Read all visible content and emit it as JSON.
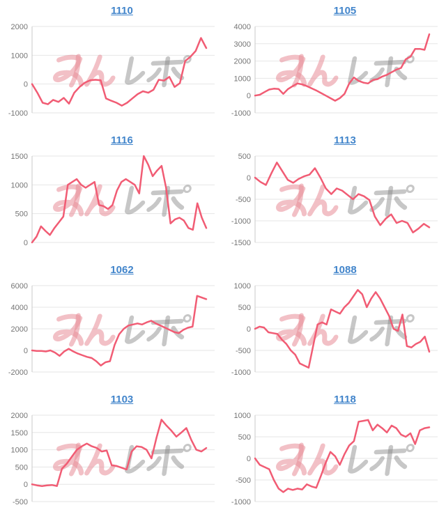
{
  "page": {
    "background": "#ffffff"
  },
  "style": {
    "line_color": "#f15c74",
    "grid_color": "#e6e6e6",
    "axis_line_color": "#c9c9c9",
    "tick_label_color": "#757575",
    "link_color": "#4285cb",
    "watermark_pink": "rgba(232,140,152,0.55)",
    "watermark_grey": "rgba(130,130,130,0.45)"
  },
  "watermark": {
    "text": "みんレポ",
    "pink_part": "みん",
    "grey_part": "レポ"
  },
  "chart_data": [
    {
      "type": "line",
      "title": "1110",
      "xlabel": "",
      "ylabel": "",
      "ymin": -1000,
      "ymax": 2000,
      "ticks": [
        2000,
        1000,
        0,
        -1000
      ],
      "legend": "none",
      "grid": "horizontal",
      "values": [
        0,
        -300,
        -650,
        -700,
        -550,
        -620,
        -480,
        -680,
        -300,
        -100,
        50,
        130,
        150,
        130,
        -500,
        -580,
        -650,
        -750,
        -650,
        -500,
        -350,
        -250,
        -300,
        -200,
        150,
        120,
        250,
        -100,
        30,
        800,
        950,
        1150,
        1600,
        1250
      ]
    },
    {
      "type": "line",
      "title": "1105",
      "xlabel": "",
      "ylabel": "",
      "ymin": -1000,
      "ymax": 4000,
      "ticks": [
        4000,
        3000,
        2000,
        1000,
        0,
        -1000
      ],
      "legend": "none",
      "grid": "horizontal",
      "values": [
        0,
        50,
        200,
        350,
        400,
        380,
        100,
        380,
        550,
        700,
        650,
        550,
        420,
        300,
        150,
        0,
        -150,
        -300,
        -150,
        100,
        700,
        1050,
        850,
        750,
        700,
        900,
        950,
        1100,
        1200,
        1350,
        1500,
        1600,
        2100,
        2250,
        2700,
        2700,
        2650,
        3550
      ]
    },
    {
      "type": "line",
      "title": "1116",
      "xlabel": "",
      "ylabel": "",
      "ymin": 0,
      "ymax": 1500,
      "ticks": [
        1500,
        1000,
        500,
        0
      ],
      "legend": "none",
      "grid": "horizontal",
      "values": [
        0,
        100,
        280,
        200,
        130,
        250,
        350,
        450,
        1000,
        1050,
        1100,
        1000,
        950,
        1000,
        1050,
        650,
        630,
        580,
        650,
        900,
        1050,
        1100,
        1050,
        1000,
        850,
        1500,
        1350,
        1150,
        1250,
        1330,
        950,
        330,
        400,
        430,
        380,
        250,
        220,
        680,
        430,
        250
      ]
    },
    {
      "type": "line",
      "title": "1113",
      "xlabel": "",
      "ylabel": "",
      "ymin": -1500,
      "ymax": 500,
      "ticks": [
        500,
        0,
        -500,
        -1000,
        -1500
      ],
      "legend": "none",
      "grid": "horizontal",
      "values": [
        0,
        -100,
        -170,
        100,
        350,
        150,
        -50,
        -120,
        -30,
        30,
        70,
        220,
        0,
        -250,
        -380,
        -250,
        -300,
        -400,
        -500,
        -380,
        -430,
        -520,
        -900,
        -1100,
        -950,
        -850,
        -1050,
        -1000,
        -1050,
        -1270,
        -1180,
        -1070,
        -1150
      ]
    },
    {
      "type": "line",
      "title": "1062",
      "xlabel": "",
      "ylabel": "",
      "ymin": -2000,
      "ymax": 6000,
      "ticks": [
        6000,
        4000,
        2000,
        0,
        -2000
      ],
      "legend": "none",
      "grid": "horizontal",
      "values": [
        0,
        -50,
        -50,
        -100,
        0,
        -200,
        -500,
        -100,
        150,
        -100,
        -300,
        -450,
        -600,
        -700,
        -1000,
        -1400,
        -1100,
        -1000,
        500,
        1500,
        2000,
        2300,
        2400,
        2500,
        2400,
        2600,
        2750,
        2500,
        2300,
        2100,
        1900,
        1700,
        1600,
        1900,
        2100,
        2200,
        5050,
        4900,
        4750
      ]
    },
    {
      "type": "line",
      "title": "1088",
      "xlabel": "",
      "ylabel": "",
      "ymin": -1000,
      "ymax": 1000,
      "ticks": [
        1000,
        500,
        0,
        -500,
        -1000
      ],
      "legend": "none",
      "grid": "horizontal",
      "values": [
        0,
        50,
        30,
        -80,
        -100,
        -120,
        -250,
        -350,
        -500,
        -600,
        -800,
        -850,
        -900,
        -400,
        100,
        150,
        100,
        450,
        400,
        350,
        500,
        600,
        750,
        900,
        800,
        500,
        700,
        850,
        700,
        500,
        300,
        0,
        -50,
        330,
        -400,
        -430,
        -350,
        -300,
        -180,
        -530
      ]
    },
    {
      "type": "line",
      "title": "1103",
      "xlabel": "",
      "ylabel": "",
      "ymin": -500,
      "ymax": 2000,
      "ticks": [
        2000,
        1500,
        1000,
        500,
        0,
        -500
      ],
      "legend": "none",
      "grid": "horizontal",
      "values": [
        0,
        -30,
        -50,
        -30,
        -20,
        -50,
        450,
        600,
        800,
        1000,
        1100,
        1180,
        1100,
        1050,
        950,
        980,
        550,
        530,
        480,
        430,
        950,
        1100,
        1080,
        1000,
        750,
        1350,
        1870,
        1700,
        1550,
        1380,
        1500,
        1630,
        1280,
        1000,
        950,
        1050
      ]
    },
    {
      "type": "line",
      "title": "1118",
      "xlabel": "",
      "ylabel": "",
      "ymin": -1000,
      "ymax": 1000,
      "ticks": [
        1000,
        500,
        0,
        -500,
        -1000
      ],
      "legend": "none",
      "grid": "horizontal",
      "values": [
        0,
        -150,
        -200,
        -250,
        -500,
        -700,
        -780,
        -700,
        -730,
        -700,
        -720,
        -600,
        -650,
        -680,
        -400,
        -100,
        150,
        50,
        -150,
        100,
        300,
        400,
        850,
        870,
        890,
        650,
        780,
        700,
        600,
        760,
        700,
        550,
        500,
        580,
        330,
        650,
        700,
        720
      ]
    }
  ]
}
